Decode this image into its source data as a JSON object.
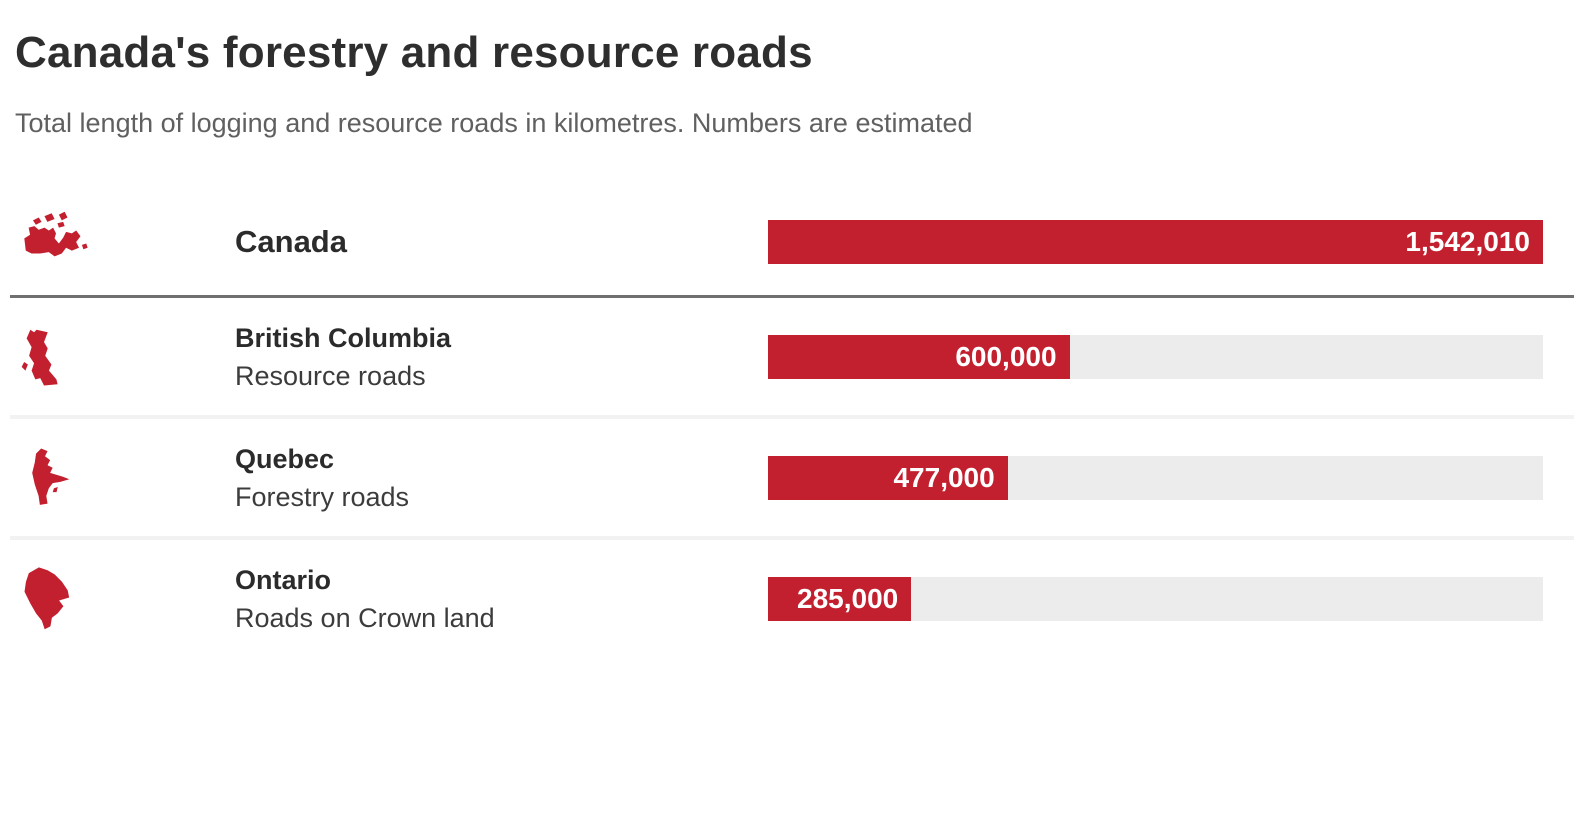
{
  "page": {
    "title": "Canada's forestry and resource roads",
    "subtitle": "Total length of logging and resource roads in kilometres. Numbers are estimated"
  },
  "colors": {
    "bar_red": "#c3202f",
    "bar_track_gray": "#ececec",
    "title_text": "#2e2e2e",
    "subtitle_text": "#606060",
    "divider_dark": "#6f6f6f",
    "divider_light": "#f2f2f2"
  },
  "chart_data": {
    "type": "bar",
    "orientation": "horizontal",
    "title": "Canada's forestry and resource roads",
    "subtitle": "Total length of logging and resource roads in kilometres. Numbers are estimated",
    "unit": "kilometres",
    "axis_max": 1542010,
    "grid": false,
    "legend": false,
    "categories": [
      "Canada",
      "British Columbia",
      "Quebec",
      "Ontario"
    ],
    "category_sublabels": [
      "",
      "Resource roads",
      "Forestry roads",
      "Roads on Crown land"
    ],
    "values": [
      1542010,
      600000,
      477000,
      285000
    ],
    "value_labels": [
      "1,542,010",
      "600,000",
      "477,000",
      "285,000"
    ]
  },
  "rows": [
    {
      "label": "Canada",
      "sublabel": "",
      "value": 1542010,
      "value_label": "1,542,010",
      "pct": 100,
      "icon": "canada-map-icon"
    },
    {
      "label": "British Columbia",
      "sublabel": "Resource roads",
      "value": 600000,
      "value_label": "600,000",
      "pct": 38.91,
      "icon": "british-columbia-map-icon"
    },
    {
      "label": "Quebec",
      "sublabel": "Forestry roads",
      "value": 477000,
      "value_label": "477,000",
      "pct": 30.93,
      "icon": "quebec-map-icon"
    },
    {
      "label": "Ontario",
      "sublabel": "Roads on Crown land",
      "value": 285000,
      "value_label": "285,000",
      "pct": 18.48,
      "icon": "ontario-map-icon"
    }
  ]
}
